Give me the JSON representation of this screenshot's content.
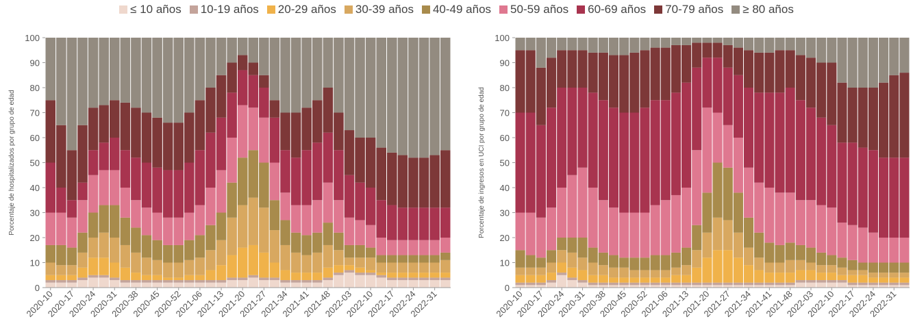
{
  "chart_data": [
    {
      "type": "stacked_bar",
      "y_label": "Porcentaje de hospitalizados por grupo de edad",
      "categories": [
        "2020-10",
        null,
        "2020-17",
        null,
        "2020-24",
        null,
        "2020-31",
        null,
        "2020-38",
        null,
        "2020-45",
        null,
        "2020-52",
        null,
        "2021-06",
        null,
        "2021-13",
        null,
        "2021-20",
        null,
        "2021-27",
        null,
        "2021-34",
        null,
        "2021-41",
        null,
        "2021-48",
        null,
        "2022-03",
        null,
        "2022-10",
        null,
        "2022-17",
        null,
        "2022-24",
        null,
        "2022-31",
        null
      ],
      "ylim": [
        0,
        100
      ],
      "yticks": [
        0,
        10,
        20,
        30,
        40,
        50,
        60,
        70,
        80,
        90,
        100
      ],
      "series": [
        {
          "name": "≤ 10 años",
          "color": "#efd8cd",
          "values": [
            2,
            2,
            2,
            3,
            4,
            4,
            3,
            2,
            2,
            2,
            2,
            2,
            2,
            2,
            2,
            2,
            2,
            3,
            3,
            4,
            3,
            3,
            2,
            2,
            2,
            2,
            3,
            5,
            6,
            5,
            5,
            4,
            3,
            3,
            3,
            3,
            3,
            3
          ]
        },
        {
          "name": "10-19 años",
          "color": "#c4a49b",
          "values": [
            1,
            1,
            1,
            1,
            1,
            1,
            1,
            1,
            1,
            1,
            1,
            1,
            1,
            1,
            1,
            1,
            1,
            1,
            1,
            1,
            1,
            1,
            1,
            1,
            1,
            1,
            1,
            1,
            1,
            1,
            1,
            1,
            1,
            1,
            1,
            1,
            1,
            1
          ]
        },
        {
          "name": "20-29 años",
          "color": "#f0b24a",
          "values": [
            2,
            2,
            2,
            4,
            7,
            7,
            6,
            5,
            3,
            2,
            2,
            1,
            1,
            2,
            2,
            4,
            6,
            9,
            12,
            12,
            10,
            6,
            4,
            3,
            3,
            3,
            4,
            3,
            2,
            2,
            1,
            1,
            2,
            2,
            2,
            2,
            2,
            2
          ]
        },
        {
          "name": "30-39 años",
          "color": "#d8a860",
          "values": [
            5,
            4,
            4,
            6,
            8,
            10,
            10,
            9,
            8,
            7,
            6,
            6,
            6,
            6,
            7,
            8,
            10,
            15,
            17,
            19,
            18,
            13,
            10,
            8,
            7,
            8,
            9,
            6,
            3,
            4,
            5,
            4,
            4,
            4,
            4,
            4,
            4,
            5
          ]
        },
        {
          "name": "40-49 años",
          "color": "#a88b4c",
          "values": [
            7,
            8,
            7,
            8,
            10,
            11,
            13,
            11,
            10,
            9,
            8,
            7,
            7,
            8,
            9,
            10,
            11,
            14,
            19,
            19,
            18,
            12,
            10,
            8,
            8,
            8,
            9,
            7,
            5,
            5,
            4,
            3,
            3,
            3,
            3,
            3,
            3,
            3
          ]
        },
        {
          "name": "50-59 años",
          "color": "#df7890",
          "values": [
            13,
            13,
            12,
            13,
            15,
            14,
            14,
            12,
            11,
            11,
            11,
            11,
            11,
            11,
            12,
            15,
            17,
            18,
            21,
            17,
            18,
            15,
            11,
            11,
            12,
            13,
            16,
            13,
            11,
            10,
            9,
            7,
            6,
            6,
            6,
            6,
            6,
            6
          ]
        },
        {
          "name": "60-69 años",
          "color": "#a8344f",
          "values": [
            20,
            10,
            7,
            7,
            10,
            11,
            13,
            15,
            17,
            18,
            18,
            19,
            19,
            20,
            22,
            22,
            21,
            18,
            14,
            13,
            12,
            18,
            17,
            19,
            22,
            23,
            20,
            20,
            17,
            15,
            15,
            15,
            14,
            13,
            13,
            13,
            13,
            12
          ]
        },
        {
          "name": "70-79 años",
          "color": "#7d3838",
          "values": [
            25,
            25,
            20,
            23,
            17,
            15,
            15,
            19,
            20,
            20,
            20,
            19,
            19,
            20,
            20,
            18,
            17,
            12,
            6,
            5,
            5,
            7,
            15,
            18,
            17,
            17,
            18,
            15,
            18,
            18,
            20,
            21,
            21,
            21,
            20,
            20,
            21,
            23
          ]
        },
        {
          "name": "≥ 80 años",
          "color": "#938b80",
          "values": [
            25,
            35,
            45,
            35,
            28,
            27,
            25,
            26,
            28,
            30,
            32,
            34,
            34,
            30,
            25,
            20,
            15,
            10,
            7,
            10,
            15,
            25,
            30,
            30,
            28,
            25,
            20,
            30,
            37,
            40,
            40,
            44,
            46,
            47,
            48,
            48,
            47,
            45
          ]
        }
      ]
    },
    {
      "type": "stacked_bar",
      "y_label": "Porcentaje de ingresos en UCI por grupo de edad",
      "categories": [
        "2020-10",
        null,
        "2020-17",
        null,
        "2020-24",
        null,
        "2020-31",
        null,
        "2020-38",
        null,
        "2020-45",
        null,
        "2020-52",
        null,
        "2021-06",
        null,
        "2021-13",
        null,
        "2021-20",
        null,
        "2021-27",
        null,
        "2021-34",
        null,
        "2021-41",
        null,
        "2021-48",
        null,
        "2022-03",
        null,
        "2022-10",
        null,
        "2022-17",
        null,
        "2022-24",
        null,
        "2022-31",
        null
      ],
      "ylim": [
        0,
        100
      ],
      "yticks": [
        0,
        10,
        20,
        30,
        40,
        50,
        60,
        70,
        80,
        90,
        100
      ],
      "series": [
        {
          "color": "#efd8cd",
          "values": [
            1,
            1,
            1,
            2,
            5,
            3,
            2,
            1,
            1,
            1,
            1,
            1,
            1,
            1,
            1,
            1,
            1,
            1,
            1,
            1,
            1,
            1,
            1,
            1,
            1,
            1,
            1,
            2,
            2,
            2,
            2,
            2,
            1,
            1,
            1,
            1,
            1,
            1
          ]
        },
        {
          "color": "#c4a49b",
          "values": [
            1,
            1,
            1,
            1,
            1,
            1,
            1,
            1,
            1,
            1,
            1,
            1,
            1,
            1,
            1,
            1,
            1,
            1,
            1,
            1,
            1,
            1,
            1,
            1,
            1,
            1,
            1,
            1,
            1,
            1,
            1,
            1,
            1,
            1,
            1,
            1,
            1,
            1
          ]
        },
        {
          "color": "#f0b24a",
          "values": [
            3,
            3,
            3,
            3,
            4,
            4,
            4,
            3,
            3,
            2,
            2,
            2,
            2,
            2,
            2,
            3,
            3,
            6,
            10,
            13,
            13,
            10,
            7,
            5,
            4,
            4,
            4,
            4,
            4,
            3,
            3,
            2,
            3,
            3,
            2,
            2,
            2,
            2
          ]
        },
        {
          "color": "#d8a860",
          "values": [
            3,
            3,
            3,
            4,
            5,
            6,
            5,
            5,
            4,
            4,
            4,
            3,
            3,
            3,
            3,
            3,
            4,
            7,
            10,
            13,
            12,
            10,
            7,
            5,
            4,
            4,
            5,
            4,
            3,
            3,
            3,
            3,
            2,
            2,
            2,
            2,
            2,
            2
          ]
        },
        {
          "color": "#a88b4c",
          "values": [
            7,
            5,
            4,
            5,
            5,
            6,
            8,
            6,
            5,
            5,
            4,
            5,
            5,
            6,
            6,
            6,
            7,
            10,
            16,
            22,
            21,
            16,
            12,
            10,
            8,
            7,
            7,
            6,
            6,
            5,
            4,
            4,
            4,
            3,
            4,
            4,
            4,
            4
          ]
        },
        {
          "color": "#df7890",
          "values": [
            15,
            17,
            16,
            17,
            20,
            25,
            28,
            24,
            21,
            19,
            18,
            18,
            18,
            20,
            22,
            23,
            24,
            30,
            34,
            20,
            17,
            22,
            20,
            20,
            22,
            21,
            20,
            18,
            19,
            19,
            19,
            14,
            14,
            14,
            12,
            10,
            10,
            10
          ]
        },
        {
          "color": "#a8344f",
          "values": [
            40,
            40,
            37,
            40,
            40,
            35,
            32,
            38,
            40,
            40,
            40,
            40,
            42,
            42,
            40,
            41,
            42,
            33,
            20,
            22,
            23,
            25,
            32,
            36,
            38,
            40,
            42,
            40,
            37,
            35,
            33,
            32,
            33,
            32,
            33,
            32,
            32,
            32
          ]
        },
        {
          "color": "#7d3838",
          "values": [
            25,
            25,
            23,
            20,
            15,
            15,
            15,
            16,
            19,
            21,
            23,
            24,
            23,
            21,
            21,
            19,
            15,
            10,
            6,
            6,
            9,
            11,
            15,
            16,
            16,
            17,
            15,
            18,
            20,
            22,
            25,
            24,
            22,
            24,
            25,
            30,
            33,
            34
          ]
        },
        {
          "color": "#938b80",
          "values": [
            5,
            5,
            12,
            8,
            5,
            5,
            5,
            6,
            6,
            7,
            7,
            6,
            5,
            4,
            4,
            3,
            3,
            2,
            2,
            2,
            3,
            4,
            5,
            6,
            6,
            5,
            5,
            7,
            8,
            10,
            10,
            18,
            20,
            20,
            20,
            18,
            15,
            14
          ]
        }
      ]
    }
  ]
}
